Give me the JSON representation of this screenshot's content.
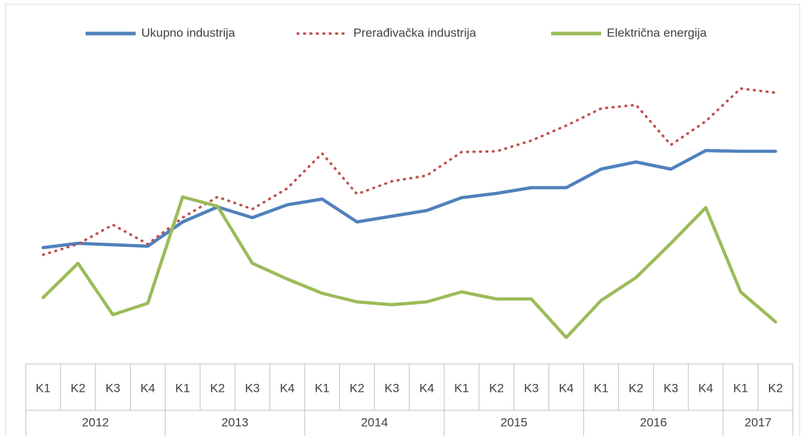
{
  "chart_data": {
    "type": "line",
    "categories": [
      "K1",
      "K2",
      "K3",
      "K4",
      "K1",
      "K2",
      "K3",
      "K4",
      "K1",
      "K2",
      "K3",
      "K4",
      "K1",
      "K2",
      "K3",
      "K4",
      "K1",
      "K2",
      "K3",
      "K4",
      "K1",
      "K2"
    ],
    "category_groups": [
      "2012",
      "2013",
      "2014",
      "2015",
      "2016",
      "2017"
    ],
    "legend": "top",
    "series": [
      {
        "name": "Ukupno industrija",
        "color": "#4f81bd",
        "style": "solid",
        "values": [
          163,
          169,
          167,
          165,
          199,
          220,
          205,
          223,
          231,
          199,
          207,
          215,
          233,
          239,
          247,
          247,
          273,
          283,
          273,
          299,
          298,
          298
        ]
      },
      {
        "name": "Prerađivačka industrija",
        "color": "#c0504d",
        "style": "dotted",
        "values": [
          153,
          168,
          195,
          168,
          205,
          234,
          217,
          246,
          295,
          238,
          256,
          264,
          297,
          298,
          313,
          334,
          358,
          363,
          307,
          340,
          386,
          380
        ]
      },
      {
        "name": "Električna energija",
        "color": "#9bbb59",
        "style": "solid",
        "values": [
          93,
          141,
          69,
          85,
          234,
          221,
          141,
          119,
          99,
          87,
          83,
          87,
          101,
          91,
          91,
          37,
          89,
          121,
          169,
          219,
          101,
          59
        ]
      }
    ]
  }
}
